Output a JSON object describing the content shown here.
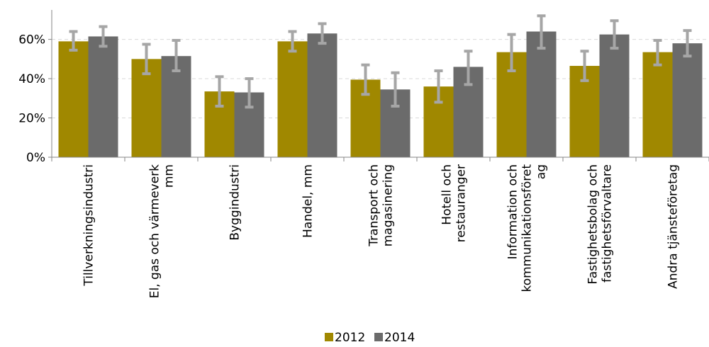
{
  "chart_data": {
    "type": "bar",
    "categories": [
      [
        "Tillverkningsindustri"
      ],
      [
        "El, gas och värmeverk",
        "mm"
      ],
      [
        "Byggindustri"
      ],
      [
        "Handel, mm"
      ],
      [
        "Transport och",
        "magasinering"
      ],
      [
        "Hotell och",
        "restauranger"
      ],
      [
        "Information och",
        "kommunikationsföret",
        "ag"
      ],
      [
        "Fastighetsbolag och",
        "fastighetsförvaltare"
      ],
      [
        "Andra tjänsteföretag"
      ]
    ],
    "series": [
      {
        "name": "2012",
        "color": "#A08800",
        "values": [
          59,
          50,
          33.5,
          59,
          39.5,
          36,
          53.5,
          46.5,
          53.5
        ],
        "err_low": [
          54.5,
          42.5,
          26,
          54,
          32,
          28,
          44,
          39,
          47
        ],
        "err_high": [
          64,
          57.5,
          41,
          64,
          47,
          44,
          62.5,
          54,
          59.5
        ]
      },
      {
        "name": "2014",
        "color": "#6B6B6B",
        "values": [
          61.5,
          51.5,
          33,
          63,
          34.5,
          46,
          64,
          62.5,
          58
        ],
        "err_low": [
          56.5,
          44,
          25.5,
          58,
          26,
          37,
          55.5,
          55.5,
          51.5
        ],
        "err_high": [
          66.5,
          59.5,
          40,
          68,
          43,
          54,
          72,
          69.5,
          64.5
        ]
      }
    ],
    "error_bar_color": "#A6A6A6",
    "ylim": [
      0,
      75
    ],
    "yticks": [
      0,
      20,
      40,
      60
    ],
    "ytick_labels": [
      "0%",
      "20%",
      "40%",
      "60%"
    ],
    "grid": "horizontal dashed",
    "legend": "bottom-center",
    "xlabel": "",
    "ylabel": ""
  }
}
